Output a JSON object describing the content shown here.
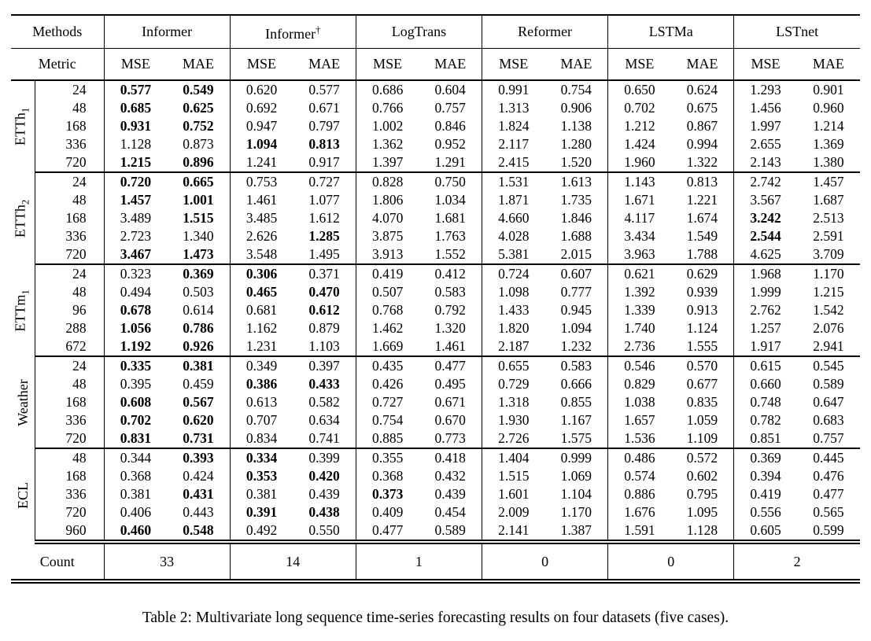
{
  "caption": "Table 2: Multivariate long sequence time-series forecasting results on four datasets (five cases).",
  "table": {
    "methods_label": "Methods",
    "metric_label": "Metric",
    "count_label": "Count",
    "metrics": [
      "MSE",
      "MAE"
    ],
    "methods": [
      {
        "name": "Informer",
        "sup": ""
      },
      {
        "name": "Informer",
        "sup": "†"
      },
      {
        "name": "LogTrans",
        "sup": ""
      },
      {
        "name": "Reformer",
        "sup": ""
      },
      {
        "name": "LSTMa",
        "sup": ""
      },
      {
        "name": "LSTnet",
        "sup": ""
      }
    ],
    "counts": [
      "33",
      "14",
      "1",
      "0",
      "0",
      "2"
    ],
    "row_groups": [
      {
        "label_base": "ETTh",
        "label_sub": "1",
        "rows": [
          {
            "len": "24",
            "vals": [
              "0.577",
              "0.549",
              "0.620",
              "0.577",
              "0.686",
              "0.604",
              "0.991",
              "0.754",
              "0.650",
              "0.624",
              "1.293",
              "0.901"
            ],
            "bold": [
              0,
              1
            ]
          },
          {
            "len": "48",
            "vals": [
              "0.685",
              "0.625",
              "0.692",
              "0.671",
              "0.766",
              "0.757",
              "1.313",
              "0.906",
              "0.702",
              "0.675",
              "1.456",
              "0.960"
            ],
            "bold": [
              0,
              1
            ]
          },
          {
            "len": "168",
            "vals": [
              "0.931",
              "0.752",
              "0.947",
              "0.797",
              "1.002",
              "0.846",
              "1.824",
              "1.138",
              "1.212",
              "0.867",
              "1.997",
              "1.214"
            ],
            "bold": [
              0,
              1
            ]
          },
          {
            "len": "336",
            "vals": [
              "1.128",
              "0.873",
              "1.094",
              "0.813",
              "1.362",
              "0.952",
              "2.117",
              "1.280",
              "1.424",
              "0.994",
              "2.655",
              "1.369"
            ],
            "bold": [
              2,
              3
            ]
          },
          {
            "len": "720",
            "vals": [
              "1.215",
              "0.896",
              "1.241",
              "0.917",
              "1.397",
              "1.291",
              "2.415",
              "1.520",
              "1.960",
              "1.322",
              "2.143",
              "1.380"
            ],
            "bold": [
              0,
              1
            ]
          }
        ]
      },
      {
        "label_base": "ETTh",
        "label_sub": "2",
        "rows": [
          {
            "len": "24",
            "vals": [
              "0.720",
              "0.665",
              "0.753",
              "0.727",
              "0.828",
              "0.750",
              "1.531",
              "1.613",
              "1.143",
              "0.813",
              "2.742",
              "1.457"
            ],
            "bold": [
              0,
              1
            ]
          },
          {
            "len": "48",
            "vals": [
              "1.457",
              "1.001",
              "1.461",
              "1.077",
              "1.806",
              "1.034",
              "1.871",
              "1.735",
              "1.671",
              "1.221",
              "3.567",
              "1.687"
            ],
            "bold": [
              0,
              1
            ]
          },
          {
            "len": "168",
            "vals": [
              "3.489",
              "1.515",
              "3.485",
              "1.612",
              "4.070",
              "1.681",
              "4.660",
              "1.846",
              "4.117",
              "1.674",
              "3.242",
              "2.513"
            ],
            "bold": [
              1,
              10
            ]
          },
          {
            "len": "336",
            "vals": [
              "2.723",
              "1.340",
              "2.626",
              "1.285",
              "3.875",
              "1.763",
              "4.028",
              "1.688",
              "3.434",
              "1.549",
              "2.544",
              "2.591"
            ],
            "bold": [
              3,
              10
            ]
          },
          {
            "len": "720",
            "vals": [
              "3.467",
              "1.473",
              "3.548",
              "1.495",
              "3.913",
              "1.552",
              "5.381",
              "2.015",
              "3.963",
              "1.788",
              "4.625",
              "3.709"
            ],
            "bold": [
              0,
              1
            ]
          }
        ]
      },
      {
        "label_base": "ETTm",
        "label_sub": "1",
        "rows": [
          {
            "len": "24",
            "vals": [
              "0.323",
              "0.369",
              "0.306",
              "0.371",
              "0.419",
              "0.412",
              "0.724",
              "0.607",
              "0.621",
              "0.629",
              "1.968",
              "1.170"
            ],
            "bold": [
              1,
              2
            ]
          },
          {
            "len": "48",
            "vals": [
              "0.494",
              "0.503",
              "0.465",
              "0.470",
              "0.507",
              "0.583",
              "1.098",
              "0.777",
              "1.392",
              "0.939",
              "1.999",
              "1.215"
            ],
            "bold": [
              2,
              3
            ]
          },
          {
            "len": "96",
            "vals": [
              "0.678",
              "0.614",
              "0.681",
              "0.612",
              "0.768",
              "0.792",
              "1.433",
              "0.945",
              "1.339",
              "0.913",
              "2.762",
              "1.542"
            ],
            "bold": [
              0,
              3
            ]
          },
          {
            "len": "288",
            "vals": [
              "1.056",
              "0.786",
              "1.162",
              "0.879",
              "1.462",
              "1.320",
              "1.820",
              "1.094",
              "1.740",
              "1.124",
              "1.257",
              "2.076"
            ],
            "bold": [
              0,
              1
            ]
          },
          {
            "len": "672",
            "vals": [
              "1.192",
              "0.926",
              "1.231",
              "1.103",
              "1.669",
              "1.461",
              "2.187",
              "1.232",
              "2.736",
              "1.555",
              "1.917",
              "2.941"
            ],
            "bold": [
              0,
              1
            ]
          }
        ]
      },
      {
        "label_base": "Weather",
        "label_sub": "",
        "rows": [
          {
            "len": "24",
            "vals": [
              "0.335",
              "0.381",
              "0.349",
              "0.397",
              "0.435",
              "0.477",
              "0.655",
              "0.583",
              "0.546",
              "0.570",
              "0.615",
              "0.545"
            ],
            "bold": [
              0,
              1
            ]
          },
          {
            "len": "48",
            "vals": [
              "0.395",
              "0.459",
              "0.386",
              "0.433",
              "0.426",
              "0.495",
              "0.729",
              "0.666",
              "0.829",
              "0.677",
              "0.660",
              "0.589"
            ],
            "bold": [
              2,
              3
            ]
          },
          {
            "len": "168",
            "vals": [
              "0.608",
              "0.567",
              "0.613",
              "0.582",
              "0.727",
              "0.671",
              "1.318",
              "0.855",
              "1.038",
              "0.835",
              "0.748",
              "0.647"
            ],
            "bold": [
              0,
              1
            ]
          },
          {
            "len": "336",
            "vals": [
              "0.702",
              "0.620",
              "0.707",
              "0.634",
              "0.754",
              "0.670",
              "1.930",
              "1.167",
              "1.657",
              "1.059",
              "0.782",
              "0.683"
            ],
            "bold": [
              0,
              1
            ]
          },
          {
            "len": "720",
            "vals": [
              "0.831",
              "0.731",
              "0.834",
              "0.741",
              "0.885",
              "0.773",
              "2.726",
              "1.575",
              "1.536",
              "1.109",
              "0.851",
              "0.757"
            ],
            "bold": [
              0,
              1
            ]
          }
        ]
      },
      {
        "label_base": "ECL",
        "label_sub": "",
        "rows": [
          {
            "len": "48",
            "vals": [
              "0.344",
              "0.393",
              "0.334",
              "0.399",
              "0.355",
              "0.418",
              "1.404",
              "0.999",
              "0.486",
              "0.572",
              "0.369",
              "0.445"
            ],
            "bold": [
              1,
              2
            ]
          },
          {
            "len": "168",
            "vals": [
              "0.368",
              "0.424",
              "0.353",
              "0.420",
              "0.368",
              "0.432",
              "1.515",
              "1.069",
              "0.574",
              "0.602",
              "0.394",
              "0.476"
            ],
            "bold": [
              2,
              3
            ]
          },
          {
            "len": "336",
            "vals": [
              "0.381",
              "0.431",
              "0.381",
              "0.439",
              "0.373",
              "0.439",
              "1.601",
              "1.104",
              "0.886",
              "0.795",
              "0.419",
              "0.477"
            ],
            "bold": [
              1,
              4
            ]
          },
          {
            "len": "720",
            "vals": [
              "0.406",
              "0.443",
              "0.391",
              "0.438",
              "0.409",
              "0.454",
              "2.009",
              "1.170",
              "1.676",
              "1.095",
              "0.556",
              "0.565"
            ],
            "bold": [
              2,
              3
            ]
          },
          {
            "len": "960",
            "vals": [
              "0.460",
              "0.548",
              "0.492",
              "0.550",
              "0.477",
              "0.589",
              "2.141",
              "1.387",
              "1.591",
              "1.128",
              "0.605",
              "0.599"
            ],
            "bold": [
              0,
              1
            ]
          }
        ]
      }
    ]
  }
}
